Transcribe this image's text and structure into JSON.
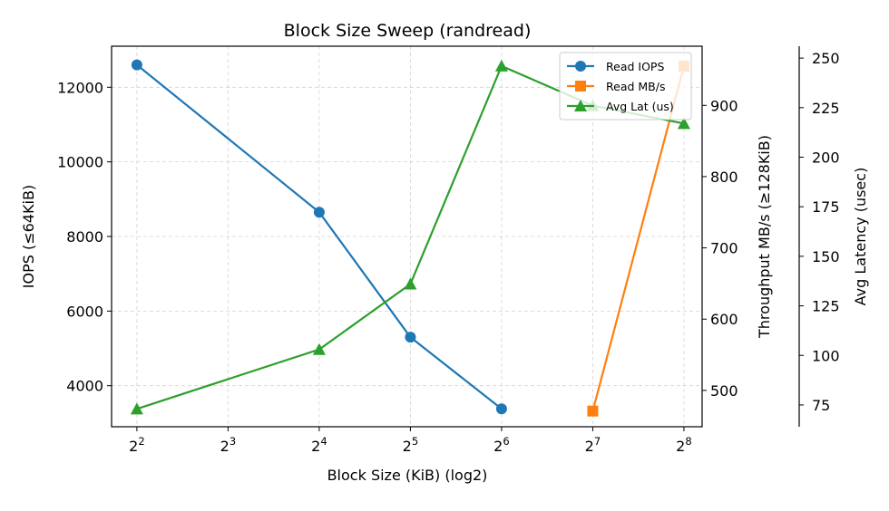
{
  "chart_data": {
    "type": "line",
    "title": "Block Size Sweep (randread)",
    "xlabel": "Block Size (KiB) (log2)",
    "ylabel_left": "IOPS (≤64KiB)",
    "ylabel_right": "Throughput MB/s (≥128KiB)",
    "ylabel_right2": "Avg Latency (usec)",
    "x_scale": "log2",
    "x_ticks": [
      {
        "base": "2",
        "exp": "2",
        "value": 4
      },
      {
        "base": "2",
        "exp": "3",
        "value": 8
      },
      {
        "base": "2",
        "exp": "4",
        "value": 16
      },
      {
        "base": "2",
        "exp": "5",
        "value": 32
      },
      {
        "base": "2",
        "exp": "6",
        "value": 64
      },
      {
        "base": "2",
        "exp": "7",
        "value": 128
      },
      {
        "base": "2",
        "exp": "8",
        "value": 256
      }
    ],
    "xlim": [
      3.3,
      294
    ],
    "left_axis": {
      "ylim": [
        2900,
        13100
      ],
      "ticks": [
        4000,
        6000,
        8000,
        10000,
        12000
      ]
    },
    "right_axis": {
      "ylim": [
        449,
        983
      ],
      "ticks": [
        500,
        600,
        700,
        800,
        900
      ]
    },
    "right2_axis": {
      "ylim": [
        64,
        256
      ],
      "ticks": [
        75,
        100,
        125,
        150,
        175,
        200,
        225,
        250
      ]
    },
    "grid": true,
    "legend_position": "top-right",
    "series": [
      {
        "name": "Read IOPS",
        "axis": "left",
        "color": "#1f77b4",
        "marker": "circle",
        "x": [
          4,
          16,
          32,
          64
        ],
        "values": [
          12600,
          8650,
          5300,
          3380
        ]
      },
      {
        "name": "Read MB/s",
        "axis": "right",
        "color": "#ff7f0e",
        "marker": "square",
        "x": [
          128,
          256
        ],
        "values": [
          471,
          955
        ]
      },
      {
        "name": "Avg Lat (us)",
        "axis": "right2",
        "color": "#2ca02c",
        "marker": "triangle",
        "x": [
          4,
          16,
          32,
          64,
          128,
          256
        ],
        "values": [
          73,
          103,
          136,
          246,
          226,
          217
        ]
      }
    ]
  }
}
